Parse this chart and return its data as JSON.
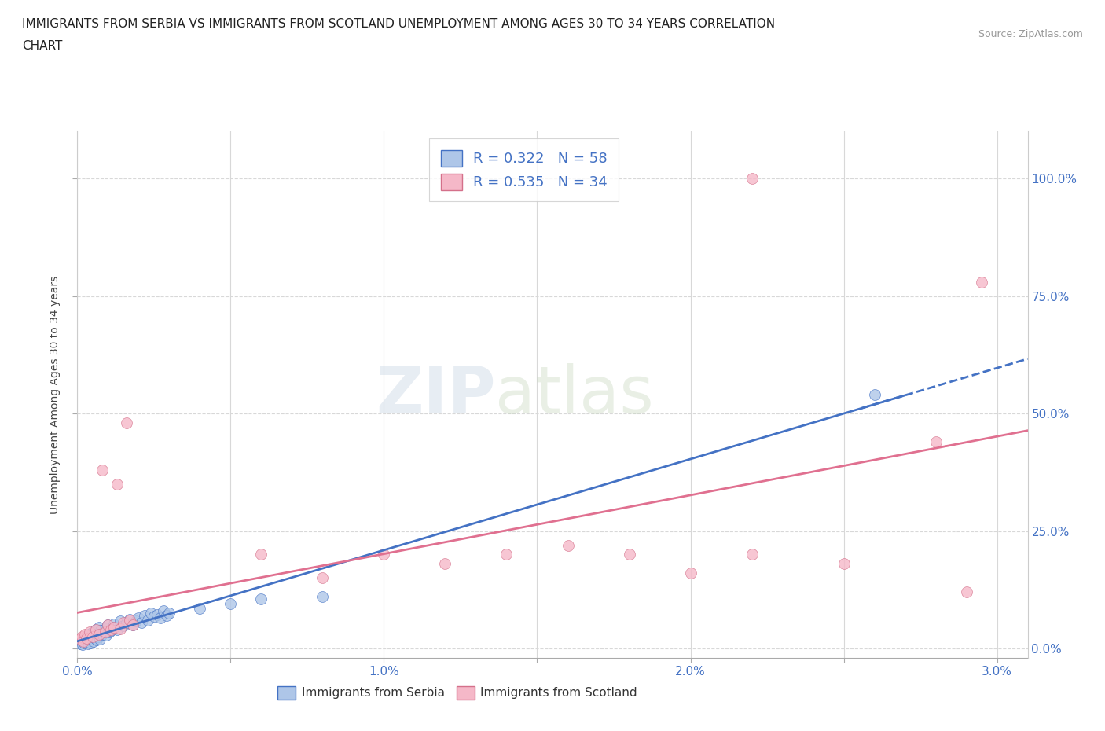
{
  "title_line1": "IMMIGRANTS FROM SERBIA VS IMMIGRANTS FROM SCOTLAND UNEMPLOYMENT AMONG AGES 30 TO 34 YEARS CORRELATION",
  "title_line2": "CHART",
  "source_text": "Source: ZipAtlas.com",
  "ylabel": "Unemployment Among Ages 30 to 34 years",
  "xlim": [
    0.0,
    0.031
  ],
  "ylim": [
    -0.02,
    1.1
  ],
  "xticks": [
    0.0,
    0.005,
    0.01,
    0.015,
    0.02,
    0.025,
    0.03
  ],
  "xticklabels": [
    "0.0%",
    "",
    "1.0%",
    "",
    "2.0%",
    "",
    "3.0%"
  ],
  "yticks": [
    0.0,
    0.25,
    0.5,
    0.75,
    1.0
  ],
  "yticklabels": [
    "0.0%",
    "25.0%",
    "50.0%",
    "75.0%",
    "100.0%"
  ],
  "serbia_color": "#aec6e8",
  "scotland_color": "#f5b8c8",
  "serbia_edge_color": "#4472c4",
  "scotland_edge_color": "#d4708a",
  "serbia_line_color": "#4472c4",
  "scotland_line_color": "#e07090",
  "serbia_R": 0.322,
  "serbia_N": 58,
  "scotland_R": 0.535,
  "scotland_N": 34,
  "legend_label_serbia": "Immigrants from Serbia",
  "legend_label_scotland": "Immigrants from Scotland",
  "watermark_zip": "ZIP",
  "watermark_atlas": "atlas",
  "background_color": "#ffffff",
  "grid_color": "#d8d8d8",
  "serbia_x": [
    0.0001,
    0.00015,
    0.00018,
    0.0002,
    0.00022,
    0.00025,
    0.00028,
    0.0003,
    0.00033,
    0.00035,
    0.00038,
    0.0004,
    0.00042,
    0.00045,
    0.00048,
    0.0005,
    0.00053,
    0.00055,
    0.00058,
    0.0006,
    0.00063,
    0.00065,
    0.00068,
    0.0007,
    0.00073,
    0.00075,
    0.0008,
    0.00085,
    0.0009,
    0.00095,
    0.001,
    0.00105,
    0.0011,
    0.00115,
    0.0012,
    0.0013,
    0.0014,
    0.0015,
    0.0016,
    0.0017,
    0.0018,
    0.0019,
    0.002,
    0.0021,
    0.0022,
    0.0023,
    0.0024,
    0.0025,
    0.0026,
    0.0027,
    0.0028,
    0.0029,
    0.003,
    0.004,
    0.005,
    0.006,
    0.008,
    0.026
  ],
  "serbia_y": [
    0.01,
    0.015,
    0.008,
    0.02,
    0.012,
    0.018,
    0.025,
    0.015,
    0.022,
    0.01,
    0.03,
    0.018,
    0.012,
    0.025,
    0.02,
    0.035,
    0.015,
    0.028,
    0.022,
    0.04,
    0.018,
    0.032,
    0.025,
    0.045,
    0.02,
    0.038,
    0.03,
    0.035,
    0.042,
    0.028,
    0.05,
    0.035,
    0.038,
    0.045,
    0.052,
    0.04,
    0.058,
    0.048,
    0.055,
    0.062,
    0.05,
    0.058,
    0.065,
    0.055,
    0.07,
    0.06,
    0.075,
    0.068,
    0.072,
    0.065,
    0.08,
    0.07,
    0.075,
    0.085,
    0.095,
    0.105,
    0.11,
    0.54
  ],
  "scotland_x": [
    0.0001,
    0.00015,
    0.0002,
    0.00025,
    0.0003,
    0.0004,
    0.0005,
    0.0006,
    0.0007,
    0.0008,
    0.0009,
    0.001,
    0.0011,
    0.0012,
    0.0013,
    0.0014,
    0.0015,
    0.0016,
    0.0017,
    0.0018,
    0.006,
    0.008,
    0.01,
    0.012,
    0.014,
    0.016,
    0.018,
    0.02,
    0.022,
    0.025,
    0.028,
    0.029,
    0.0295,
    0.022
  ],
  "scotland_y": [
    0.02,
    0.025,
    0.015,
    0.03,
    0.022,
    0.035,
    0.025,
    0.04,
    0.03,
    0.38,
    0.035,
    0.05,
    0.04,
    0.045,
    0.35,
    0.042,
    0.055,
    0.48,
    0.06,
    0.05,
    0.2,
    0.15,
    0.2,
    0.18,
    0.2,
    0.22,
    0.2,
    0.16,
    0.2,
    0.18,
    0.44,
    0.12,
    0.78,
    1.0
  ]
}
